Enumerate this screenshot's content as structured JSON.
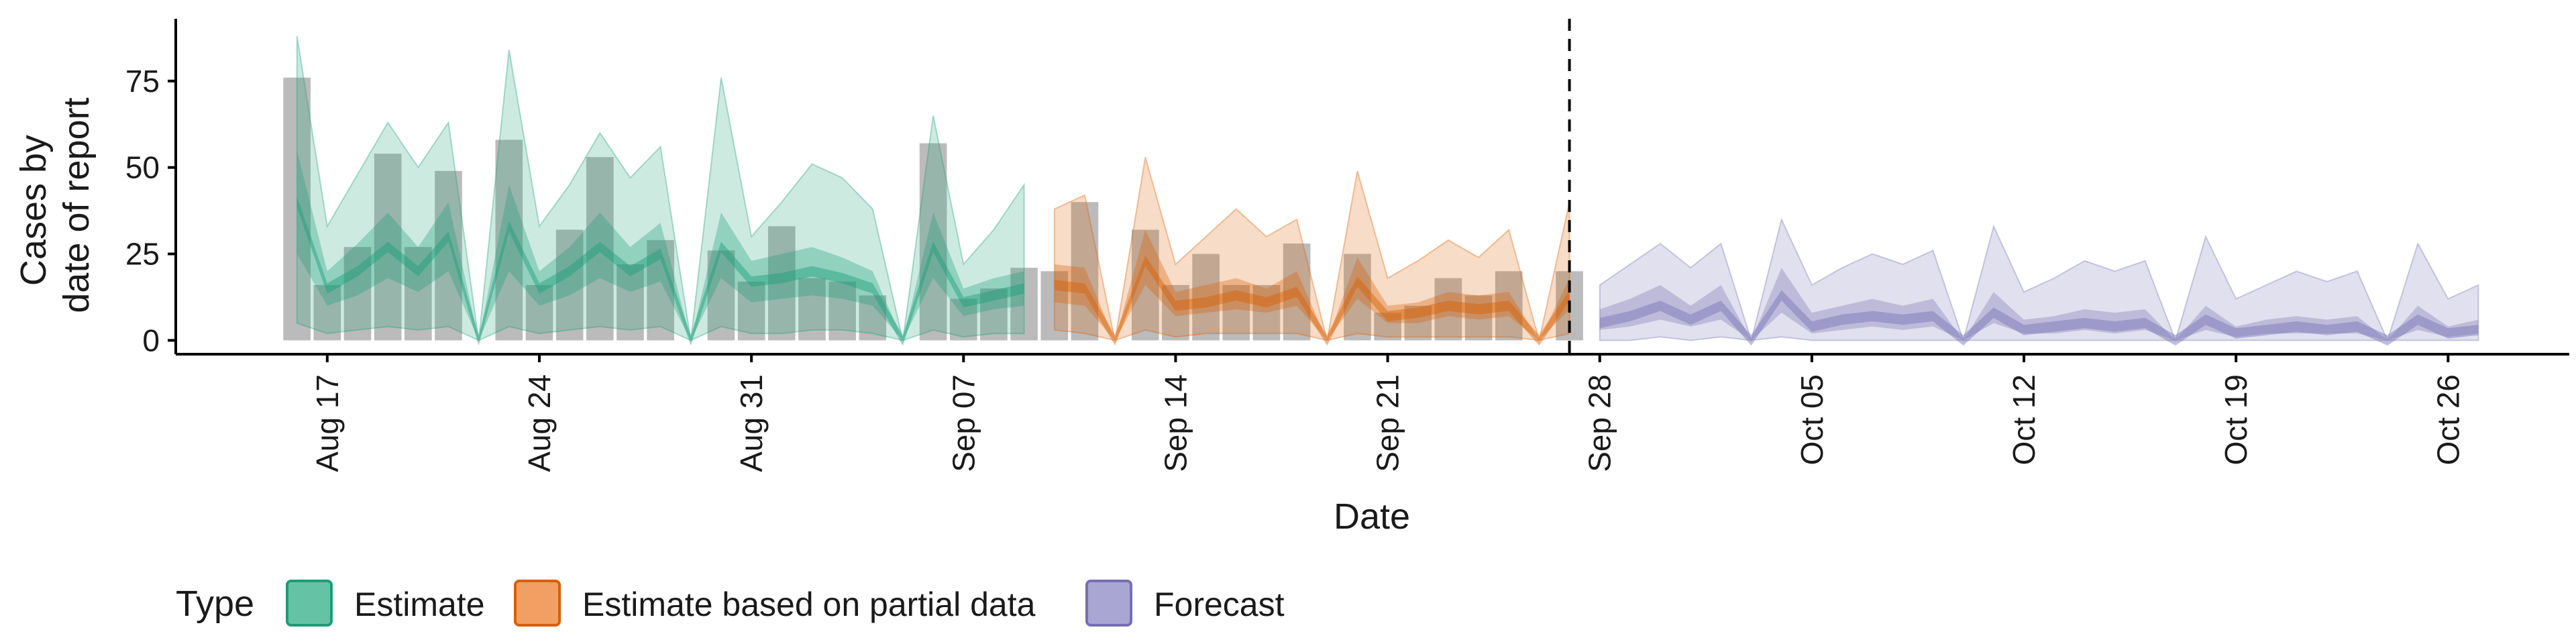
{
  "chart_data": {
    "type": "area",
    "xlabel": "Date",
    "ylabel_lines": [
      "Cases by",
      "date of report"
    ],
    "y_ticks": [
      0,
      25,
      50,
      75
    ],
    "ylim": [
      -4,
      93
    ],
    "xlim": [
      "2020-08-12",
      "2020-10-30"
    ],
    "x_ticks": [
      {
        "date": "2020-08-17",
        "label": "Aug 17"
      },
      {
        "date": "2020-08-24",
        "label": "Aug 24"
      },
      {
        "date": "2020-08-31",
        "label": "Aug 31"
      },
      {
        "date": "2020-09-07",
        "label": "Sep 07"
      },
      {
        "date": "2020-09-14",
        "label": "Sep 14"
      },
      {
        "date": "2020-09-21",
        "label": "Sep 21"
      },
      {
        "date": "2020-09-28",
        "label": "Sep 28"
      },
      {
        "date": "2020-10-05",
        "label": "Oct 05"
      },
      {
        "date": "2020-10-12",
        "label": "Oct 12"
      },
      {
        "date": "2020-10-19",
        "label": "Oct 19"
      },
      {
        "date": "2020-10-26",
        "label": "Oct 26"
      }
    ],
    "forecast_line_date": "2020-09-27",
    "legend": {
      "title": "Type",
      "position": "bottom",
      "items": [
        {
          "label": "Estimate",
          "fill": "#66c2a5",
          "stroke": "#1b9e77"
        },
        {
          "label": "Estimate based on partial data",
          "fill": "#f0a062",
          "stroke": "#d95f02"
        },
        {
          "label": "Forecast",
          "fill": "#a9a6d4",
          "stroke": "#7570b3"
        }
      ]
    },
    "colors": {
      "estimate": "#1b9e77",
      "partial": "#d95f02",
      "forecast": "#7570b3",
      "reported_bars": "#9e9e9e"
    },
    "reported_cases": {
      "start_date": "2020-08-16",
      "values": [
        76,
        16,
        27,
        54,
        27,
        49,
        0,
        58,
        16,
        32,
        53,
        22,
        29,
        0,
        26,
        17,
        33,
        18,
        17,
        13,
        0,
        57,
        12,
        15,
        21,
        20,
        40,
        0,
        32,
        16,
        25,
        16,
        16,
        28,
        0,
        25,
        8,
        10,
        18,
        13,
        20,
        0,
        20
      ]
    },
    "series": [
      {
        "name": "Estimate",
        "start_date": "2020-08-16",
        "median": [
          40,
          15,
          20,
          27,
          20,
          30,
          0,
          33,
          15,
          20,
          27,
          20,
          25,
          0,
          27,
          17,
          18,
          20,
          18,
          15,
          0,
          27,
          11,
          13,
          15
        ],
        "inner": [
          [
            25,
            55
          ],
          [
            10,
            20
          ],
          [
            13,
            28
          ],
          [
            18,
            37
          ],
          [
            14,
            27
          ],
          [
            20,
            40
          ],
          [
            0,
            0
          ],
          [
            20,
            45
          ],
          [
            10,
            20
          ],
          [
            13,
            27
          ],
          [
            18,
            37
          ],
          [
            14,
            27
          ],
          [
            17,
            34
          ],
          [
            0,
            0
          ],
          [
            18,
            37
          ],
          [
            11,
            23
          ],
          [
            12,
            25
          ],
          [
            13,
            27
          ],
          [
            12,
            24
          ],
          [
            10,
            20
          ],
          [
            0,
            0
          ],
          [
            18,
            37
          ],
          [
            7,
            15
          ],
          [
            9,
            18
          ],
          [
            10,
            20
          ]
        ],
        "outer": [
          [
            5,
            88
          ],
          [
            2,
            33
          ],
          [
            3,
            48
          ],
          [
            4,
            63
          ],
          [
            3,
            50
          ],
          [
            4,
            63
          ],
          [
            0,
            0
          ],
          [
            4,
            84
          ],
          [
            2,
            33
          ],
          [
            3,
            45
          ],
          [
            4,
            60
          ],
          [
            3,
            47
          ],
          [
            4,
            56
          ],
          [
            0,
            0
          ],
          [
            4,
            76
          ],
          [
            2,
            30
          ],
          [
            2,
            40
          ],
          [
            3,
            51
          ],
          [
            3,
            47
          ],
          [
            2,
            38
          ],
          [
            0,
            0
          ],
          [
            3,
            65
          ],
          [
            1,
            22
          ],
          [
            2,
            32
          ],
          [
            2,
            45
          ]
        ]
      },
      {
        "name": "Estimate based on partial data",
        "start_date": "2020-09-10",
        "median": [
          16,
          15,
          0,
          23,
          10,
          11,
          13,
          11,
          14,
          0,
          17,
          7,
          8,
          10,
          9,
          10,
          0,
          13
        ],
        "inner": [
          [
            11,
            22
          ],
          [
            10,
            21
          ],
          [
            0,
            0
          ],
          [
            16,
            32
          ],
          [
            7,
            14
          ],
          [
            8,
            16
          ],
          [
            9,
            18
          ],
          [
            8,
            15
          ],
          [
            10,
            20
          ],
          [
            0,
            0
          ],
          [
            12,
            24
          ],
          [
            5,
            10
          ],
          [
            5,
            11
          ],
          [
            7,
            14
          ],
          [
            6,
            13
          ],
          [
            7,
            14
          ],
          [
            0,
            0
          ],
          [
            9,
            18
          ]
        ],
        "outer": [
          [
            3,
            38
          ],
          [
            2,
            42
          ],
          [
            0,
            0
          ],
          [
            3,
            53
          ],
          [
            1,
            22
          ],
          [
            2,
            30
          ],
          [
            2,
            38
          ],
          [
            2,
            30
          ],
          [
            2,
            35
          ],
          [
            0,
            0
          ],
          [
            2,
            49
          ],
          [
            1,
            18
          ],
          [
            1,
            23
          ],
          [
            1,
            29
          ],
          [
            1,
            24
          ],
          [
            1,
            32
          ],
          [
            0,
            0
          ],
          [
            2,
            40
          ]
        ]
      },
      {
        "name": "Forecast",
        "start_date": "2020-09-28",
        "median": [
          5,
          7,
          10,
          6,
          10,
          0,
          13,
          4,
          6,
          7,
          6,
          7,
          0,
          8,
          3,
          4,
          5,
          4,
          5,
          0,
          6,
          2,
          3,
          4,
          3,
          4,
          0,
          6,
          2,
          3
        ],
        "inner": [
          [
            3,
            9
          ],
          [
            4,
            12
          ],
          [
            6,
            16
          ],
          [
            4,
            10
          ],
          [
            6,
            16
          ],
          [
            0,
            0
          ],
          [
            8,
            21
          ],
          [
            2,
            8
          ],
          [
            3,
            10
          ],
          [
            4,
            12
          ],
          [
            3,
            10
          ],
          [
            4,
            12
          ],
          [
            0,
            0
          ],
          [
            5,
            14
          ],
          [
            2,
            6
          ],
          [
            2,
            7
          ],
          [
            3,
            9
          ],
          [
            2,
            8
          ],
          [
            3,
            9
          ],
          [
            0,
            0
          ],
          [
            3,
            10
          ],
          [
            1,
            4
          ],
          [
            2,
            6
          ],
          [
            2,
            7
          ],
          [
            2,
            6
          ],
          [
            2,
            7
          ],
          [
            0,
            0
          ],
          [
            3,
            10
          ],
          [
            1,
            4
          ],
          [
            2,
            6
          ]
        ],
        "outer": [
          [
            0,
            16
          ],
          [
            0,
            22
          ],
          [
            1,
            28
          ],
          [
            0,
            21
          ],
          [
            1,
            28
          ],
          [
            0,
            0
          ],
          [
            1,
            35
          ],
          [
            0,
            16
          ],
          [
            0,
            21
          ],
          [
            0,
            25
          ],
          [
            0,
            22
          ],
          [
            0,
            26
          ],
          [
            0,
            0
          ],
          [
            0,
            33
          ],
          [
            0,
            14
          ],
          [
            0,
            18
          ],
          [
            0,
            23
          ],
          [
            0,
            20
          ],
          [
            0,
            23
          ],
          [
            0,
            0
          ],
          [
            0,
            30
          ],
          [
            0,
            12
          ],
          [
            0,
            16
          ],
          [
            0,
            20
          ],
          [
            0,
            17
          ],
          [
            0,
            20
          ],
          [
            0,
            0
          ],
          [
            0,
            28
          ],
          [
            0,
            12
          ],
          [
            0,
            16
          ]
        ]
      }
    ]
  }
}
